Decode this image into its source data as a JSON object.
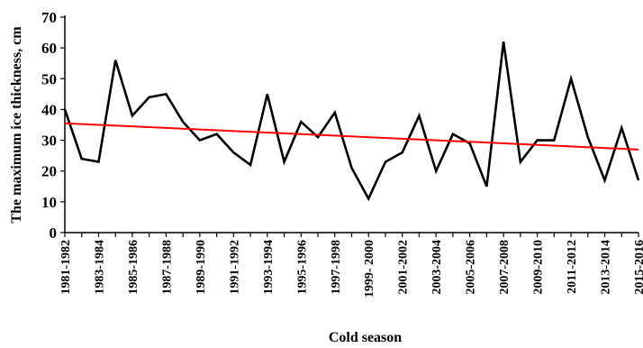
{
  "chart_data": {
    "type": "line",
    "title": "",
    "xlabel": "Cold season",
    "ylabel": "The maximum ice thickness, cm",
    "ylim": [
      0,
      70
    ],
    "yticks": [
      0,
      10,
      20,
      30,
      40,
      50,
      60,
      70
    ],
    "grid": false,
    "legend": "none",
    "categories": [
      "1981-1982",
      "1982-1983",
      "1983-1984",
      "1984-1985",
      "1985-1986",
      "1986-1987",
      "1987-1988",
      "1988-1989",
      "1989-1990",
      "1990-1991",
      "1991-1992",
      "1992-1993",
      "1993-1994",
      "1994-1995",
      "1995-1996",
      "1996-1997",
      "1997-1998",
      "1998-1999",
      "1999- 2000",
      "2000-2001",
      "2001-2002",
      "2002-2003",
      "2003-2004",
      "2004-2005",
      "2005-2006",
      "2006-2007",
      "2007-2008",
      "2008-2009",
      "2009-2010",
      "2010-2011",
      "2011-2012",
      "2012-2013",
      "2013-2014",
      "2014-2015",
      "2015-2016"
    ],
    "tick_labels_shown": [
      "1981-1982",
      "1983-1984",
      "1985-1986",
      "1987-1988",
      "1989-1990",
      "1991-1992",
      "1993-1994",
      "1995-1996",
      "1997-1998",
      "1999- 2000",
      "2001-2002",
      "2003-2004",
      "2005-2006",
      "2007-2008",
      "2009-2010",
      "2011-2012",
      "2013-2014",
      "2015-2016"
    ],
    "series": [
      {
        "values": [
          40,
          24,
          23,
          56,
          38,
          44,
          45,
          36,
          30,
          32,
          26,
          22,
          45,
          23,
          36,
          31,
          39,
          21,
          11,
          23,
          26,
          38,
          20,
          32,
          29,
          15,
          62,
          23,
          30,
          30,
          50,
          31,
          17,
          34,
          17
        ],
        "color": "#000000"
      }
    ],
    "trendline": {
      "start": 35.5,
      "end": 27,
      "color": "#ff0000"
    }
  }
}
